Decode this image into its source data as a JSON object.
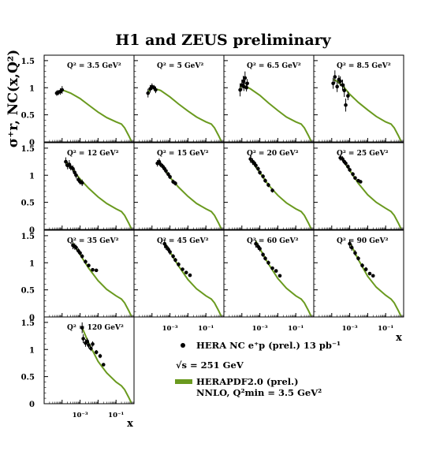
{
  "title": "H1 and ZEUS preliminary",
  "ylabel": "σ⁺r, NC(x,Q²)",
  "xlabel": "x",
  "yticks": [
    "0",
    "0.5",
    "1",
    "1.5"
  ],
  "xticks": [
    "10⁻³",
    "10⁻¹"
  ],
  "legend": {
    "data_label": "HERA NC e⁺p (prel.) 13 pb⁻¹",
    "energy_label": "√s = 251 GeV",
    "fit_label_1": "HERAPDF2.0 (prel.)",
    "fit_label_2": "NNLO, Q²min = 3.5 GeV²"
  },
  "colors": {
    "fit": "#6a9a1f",
    "data": "#000000"
  },
  "chart_data": {
    "type": "scatter",
    "xscale": "log",
    "xlim": [
      1e-05,
      1
    ],
    "ylim": [
      0,
      1.6
    ],
    "grid": false,
    "legend_position": "bottom-right",
    "panels": [
      {
        "q2_label": "Q² = 3.5 GeV²",
        "q2": 3.5,
        "points": [
          [
            5e-05,
            0.9,
            0.05
          ],
          [
            6e-05,
            0.91,
            0.05
          ],
          [
            8e-05,
            0.93,
            0.06
          ],
          [
            0.0001,
            0.96,
            0.07
          ]
        ],
        "fit": [
          [
            5e-05,
            0.9
          ],
          [
            0.0001,
            0.96
          ],
          [
            0.0003,
            0.9
          ],
          [
            0.001,
            0.8
          ],
          [
            0.003,
            0.68
          ],
          [
            0.01,
            0.55
          ],
          [
            0.03,
            0.45
          ],
          [
            0.1,
            0.37
          ],
          [
            0.2,
            0.33
          ],
          [
            0.3,
            0.26
          ],
          [
            0.5,
            0.12
          ],
          [
            0.7,
            0.02
          ]
        ]
      },
      {
        "q2_label": "Q² = 5 GeV²",
        "q2": 5,
        "points": [
          [
            6e-05,
            0.9,
            0.08
          ],
          [
            8e-05,
            0.98,
            0.07
          ],
          [
            0.0001,
            1.02,
            0.06
          ],
          [
            0.00013,
            1.0,
            0.05
          ],
          [
            0.00016,
            0.96,
            0.06
          ]
        ],
        "fit": [
          [
            6e-05,
            0.92
          ],
          [
            0.0001,
            1.0
          ],
          [
            0.0003,
            0.95
          ],
          [
            0.001,
            0.83
          ],
          [
            0.003,
            0.7
          ],
          [
            0.01,
            0.57
          ],
          [
            0.03,
            0.46
          ],
          [
            0.1,
            0.37
          ],
          [
            0.2,
            0.33
          ],
          [
            0.3,
            0.26
          ],
          [
            0.5,
            0.12
          ],
          [
            0.7,
            0.02
          ]
        ]
      },
      {
        "q2_label": "Q² = 6.5 GeV²",
        "q2": 6.5,
        "points": [
          [
            8e-05,
            0.96,
            0.12
          ],
          [
            0.0001,
            1.05,
            0.1
          ],
          [
            0.00012,
            1.12,
            0.1
          ],
          [
            0.00013,
            1.02,
            0.08
          ],
          [
            0.00015,
            1.18,
            0.12
          ],
          [
            0.00018,
            1.0,
            0.07
          ],
          [
            0.0002,
            1.08,
            0.08
          ]
        ],
        "fit": [
          [
            8e-05,
            1.0
          ],
          [
            0.0001,
            1.06
          ],
          [
            0.0003,
            0.98
          ],
          [
            0.001,
            0.86
          ],
          [
            0.003,
            0.72
          ],
          [
            0.01,
            0.58
          ],
          [
            0.03,
            0.46
          ],
          [
            0.1,
            0.37
          ],
          [
            0.2,
            0.33
          ],
          [
            0.3,
            0.26
          ],
          [
            0.5,
            0.12
          ],
          [
            0.7,
            0.02
          ]
        ]
      },
      {
        "q2_label": "Q² = 8.5 GeV²",
        "q2": 8.5,
        "points": [
          [
            0.00012,
            1.08,
            0.1
          ],
          [
            0.00015,
            1.2,
            0.12
          ],
          [
            0.0002,
            1.02,
            0.1
          ],
          [
            0.00025,
            1.15,
            0.08
          ],
          [
            0.0003,
            1.12,
            0.09
          ],
          [
            0.0004,
            1.05,
            0.1
          ],
          [
            0.0005,
            0.95,
            0.12
          ],
          [
            0.0006,
            0.68,
            0.12
          ],
          [
            0.0008,
            0.85,
            0.08
          ]
        ],
        "fit": [
          [
            0.00012,
            1.15
          ],
          [
            0.0002,
            1.12
          ],
          [
            0.0005,
            1.0
          ],
          [
            0.001,
            0.88
          ],
          [
            0.003,
            0.73
          ],
          [
            0.01,
            0.59
          ],
          [
            0.03,
            0.47
          ],
          [
            0.1,
            0.37
          ],
          [
            0.2,
            0.33
          ],
          [
            0.3,
            0.26
          ],
          [
            0.5,
            0.12
          ],
          [
            0.7,
            0.02
          ]
        ]
      },
      {
        "q2_label": "Q² = 12 GeV²",
        "q2": 12,
        "points": [
          [
            0.00016,
            1.25,
            0.08
          ],
          [
            0.0002,
            1.18,
            0.07
          ],
          [
            0.00025,
            1.2,
            0.08
          ],
          [
            0.0003,
            1.15,
            0.06
          ],
          [
            0.0004,
            1.12,
            0.06
          ],
          [
            0.0005,
            1.05,
            0.06
          ],
          [
            0.0006,
            1.0,
            0.06
          ],
          [
            0.0008,
            0.92,
            0.05
          ],
          [
            0.001,
            0.88,
            0.05
          ],
          [
            0.0013,
            0.86,
            0.06
          ]
        ],
        "fit": [
          [
            0.00016,
            1.24
          ],
          [
            0.0003,
            1.15
          ],
          [
            0.001,
            0.93
          ],
          [
            0.003,
            0.76
          ],
          [
            0.01,
            0.6
          ],
          [
            0.03,
            0.48
          ],
          [
            0.1,
            0.38
          ],
          [
            0.2,
            0.33
          ],
          [
            0.3,
            0.26
          ],
          [
            0.5,
            0.12
          ],
          [
            0.7,
            0.02
          ]
        ]
      },
      {
        "q2_label": "Q² = 15 GeV²",
        "q2": 15,
        "points": [
          [
            0.0002,
            1.22,
            0.06
          ],
          [
            0.00025,
            1.25,
            0.06
          ],
          [
            0.0003,
            1.2,
            0.05
          ],
          [
            0.0004,
            1.16,
            0.05
          ],
          [
            0.0005,
            1.12,
            0.05
          ],
          [
            0.0006,
            1.08,
            0.05
          ],
          [
            0.0008,
            1.02,
            0.04
          ],
          [
            0.001,
            0.97,
            0.04
          ],
          [
            0.0015,
            0.88,
            0.04
          ],
          [
            0.002,
            0.85,
            0.04
          ]
        ],
        "fit": [
          [
            0.0002,
            1.26
          ],
          [
            0.0005,
            1.12
          ],
          [
            0.001,
            0.96
          ],
          [
            0.003,
            0.78
          ],
          [
            0.01,
            0.61
          ],
          [
            0.03,
            0.48
          ],
          [
            0.1,
            0.38
          ],
          [
            0.2,
            0.33
          ],
          [
            0.3,
            0.26
          ],
          [
            0.5,
            0.12
          ],
          [
            0.7,
            0.02
          ]
        ]
      },
      {
        "q2_label": "Q² = 20 GeV²",
        "q2": 20,
        "points": [
          [
            0.0003,
            1.3,
            0.07
          ],
          [
            0.0004,
            1.25,
            0.06
          ],
          [
            0.0005,
            1.22,
            0.05
          ],
          [
            0.0006,
            1.18,
            0.05
          ],
          [
            0.0008,
            1.12,
            0.04
          ],
          [
            0.001,
            1.05,
            0.04
          ],
          [
            0.0015,
            0.98,
            0.04
          ],
          [
            0.002,
            0.9,
            0.04
          ],
          [
            0.003,
            0.82,
            0.04
          ],
          [
            0.005,
            0.72,
            0.04
          ]
        ],
        "fit": [
          [
            0.0003,
            1.29
          ],
          [
            0.001,
            1.05
          ],
          [
            0.003,
            0.82
          ],
          [
            0.01,
            0.63
          ],
          [
            0.03,
            0.49
          ],
          [
            0.1,
            0.38
          ],
          [
            0.2,
            0.33
          ],
          [
            0.3,
            0.26
          ],
          [
            0.5,
            0.12
          ],
          [
            0.7,
            0.02
          ]
        ]
      },
      {
        "q2_label": "Q² = 25 GeV²",
        "q2": 25,
        "points": [
          [
            0.0003,
            1.32,
            0.05
          ],
          [
            0.0004,
            1.3,
            0.05
          ],
          [
            0.0005,
            1.25,
            0.04
          ],
          [
            0.0006,
            1.22,
            0.04
          ],
          [
            0.0008,
            1.16,
            0.04
          ],
          [
            0.001,
            1.1,
            0.04
          ],
          [
            0.0015,
            1.02,
            0.04
          ],
          [
            0.002,
            0.95,
            0.03
          ],
          [
            0.003,
            0.9,
            0.03
          ],
          [
            0.004,
            0.88,
            0.03
          ]
        ],
        "fit": [
          [
            0.0003,
            1.34
          ],
          [
            0.001,
            1.09
          ],
          [
            0.003,
            0.85
          ],
          [
            0.01,
            0.64
          ],
          [
            0.03,
            0.5
          ],
          [
            0.1,
            0.39
          ],
          [
            0.2,
            0.33
          ],
          [
            0.3,
            0.26
          ],
          [
            0.5,
            0.12
          ],
          [
            0.7,
            0.02
          ]
        ]
      },
      {
        "q2_label": "Q² = 35 GeV²",
        "q2": 35,
        "points": [
          [
            0.0004,
            1.32,
            0.07
          ],
          [
            0.0005,
            1.3,
            0.06
          ],
          [
            0.0006,
            1.28,
            0.05
          ],
          [
            0.0008,
            1.22,
            0.05
          ],
          [
            0.001,
            1.18,
            0.04
          ],
          [
            0.0013,
            1.12,
            0.04
          ],
          [
            0.002,
            1.02,
            0.04
          ],
          [
            0.003,
            0.95,
            0.03
          ],
          [
            0.005,
            0.87,
            0.03
          ],
          [
            0.008,
            0.86,
            0.03
          ]
        ],
        "fit": [
          [
            0.0004,
            1.36
          ],
          [
            0.001,
            1.15
          ],
          [
            0.003,
            0.9
          ],
          [
            0.01,
            0.67
          ],
          [
            0.03,
            0.51
          ],
          [
            0.1,
            0.39
          ],
          [
            0.2,
            0.33
          ],
          [
            0.3,
            0.26
          ],
          [
            0.5,
            0.12
          ],
          [
            0.7,
            0.02
          ]
        ]
      },
      {
        "q2_label": "Q² = 45 GeV²",
        "q2": 45,
        "points": [
          [
            0.0005,
            1.35,
            0.08
          ],
          [
            0.0006,
            1.3,
            0.06
          ],
          [
            0.0008,
            1.25,
            0.05
          ],
          [
            0.001,
            1.2,
            0.05
          ],
          [
            0.0015,
            1.12,
            0.04
          ],
          [
            0.002,
            1.05,
            0.04
          ],
          [
            0.003,
            0.97,
            0.04
          ],
          [
            0.005,
            0.88,
            0.03
          ],
          [
            0.008,
            0.82,
            0.03
          ],
          [
            0.013,
            0.77,
            0.03
          ]
        ],
        "fit": [
          [
            0.0005,
            1.38
          ],
          [
            0.001,
            1.2
          ],
          [
            0.003,
            0.94
          ],
          [
            0.01,
            0.69
          ],
          [
            0.03,
            0.52
          ],
          [
            0.1,
            0.39
          ],
          [
            0.2,
            0.33
          ],
          [
            0.3,
            0.26
          ],
          [
            0.5,
            0.12
          ],
          [
            0.7,
            0.02
          ]
        ]
      },
      {
        "q2_label": "Q² = 60 GeV²",
        "q2": 60,
        "points": [
          [
            0.0006,
            1.35,
            0.07
          ],
          [
            0.0008,
            1.3,
            0.06
          ],
          [
            0.001,
            1.26,
            0.05
          ],
          [
            0.0015,
            1.15,
            0.04
          ],
          [
            0.002,
            1.08,
            0.04
          ],
          [
            0.003,
            1.0,
            0.04
          ],
          [
            0.005,
            0.9,
            0.03
          ],
          [
            0.008,
            0.85,
            0.03
          ],
          [
            0.013,
            0.76,
            0.03
          ]
        ],
        "fit": [
          [
            0.0006,
            1.4
          ],
          [
            0.001,
            1.26
          ],
          [
            0.003,
            0.98
          ],
          [
            0.01,
            0.71
          ],
          [
            0.03,
            0.53
          ],
          [
            0.1,
            0.39
          ],
          [
            0.2,
            0.33
          ],
          [
            0.3,
            0.26
          ],
          [
            0.5,
            0.12
          ],
          [
            0.7,
            0.02
          ]
        ]
      },
      {
        "q2_label": "Q² = 90 GeV²",
        "q2": 90,
        "points": [
          [
            0.001,
            1.35,
            0.08
          ],
          [
            0.0013,
            1.28,
            0.06
          ],
          [
            0.002,
            1.18,
            0.05
          ],
          [
            0.003,
            1.08,
            0.04
          ],
          [
            0.005,
            0.95,
            0.04
          ],
          [
            0.008,
            0.88,
            0.04
          ],
          [
            0.013,
            0.8,
            0.03
          ],
          [
            0.02,
            0.76,
            0.03
          ]
        ],
        "fit": [
          [
            0.001,
            1.38
          ],
          [
            0.003,
            1.06
          ],
          [
            0.01,
            0.75
          ],
          [
            0.03,
            0.55
          ],
          [
            0.1,
            0.4
          ],
          [
            0.2,
            0.33
          ],
          [
            0.3,
            0.26
          ],
          [
            0.5,
            0.12
          ],
          [
            0.7,
            0.02
          ]
        ]
      },
      {
        "q2_label": "Q² = 120 GeV²",
        "q2": 120,
        "points": [
          [
            0.0013,
            1.4,
            0.1
          ],
          [
            0.0015,
            1.2,
            0.08
          ],
          [
            0.002,
            1.12,
            0.07
          ],
          [
            0.0025,
            1.15,
            0.06
          ],
          [
            0.003,
            1.08,
            0.06
          ],
          [
            0.004,
            1.02,
            0.05
          ],
          [
            0.005,
            1.1,
            0.05
          ],
          [
            0.008,
            0.95,
            0.04
          ],
          [
            0.013,
            0.88,
            0.04
          ],
          [
            0.02,
            0.72,
            0.03
          ]
        ],
        "fit": [
          [
            0.0013,
            1.4
          ],
          [
            0.003,
            1.12
          ],
          [
            0.01,
            0.78
          ],
          [
            0.03,
            0.57
          ],
          [
            0.1,
            0.4
          ],
          [
            0.2,
            0.33
          ],
          [
            0.3,
            0.26
          ],
          [
            0.5,
            0.12
          ],
          [
            0.7,
            0.02
          ]
        ]
      }
    ]
  }
}
